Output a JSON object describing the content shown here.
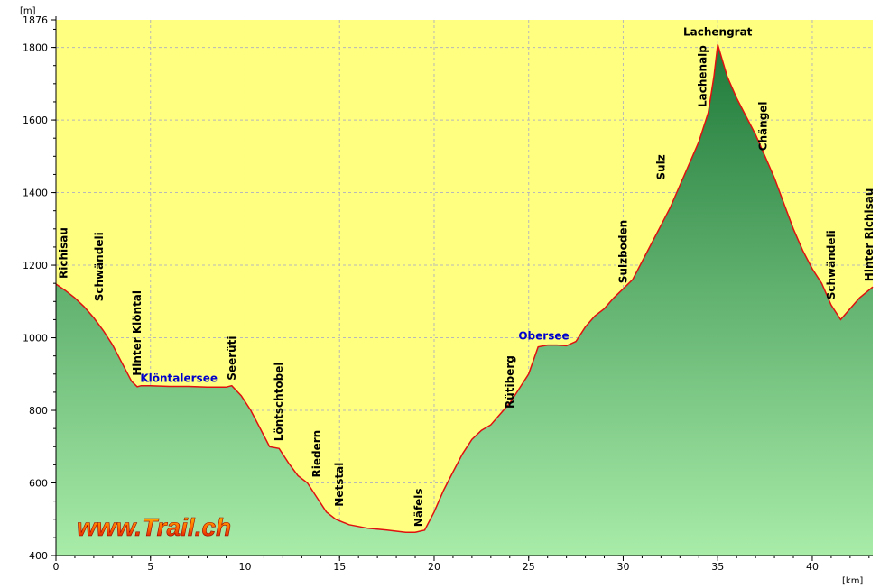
{
  "chart_data": {
    "type": "area",
    "title": "",
    "xlabel": "[km]",
    "ylabel": "[m]",
    "xlim": [
      0,
      43.2
    ],
    "ylim": [
      400,
      1876
    ],
    "x_ticks": [
      0,
      5,
      10,
      15,
      20,
      25,
      30,
      35,
      40
    ],
    "y_ticks": [
      400,
      600,
      800,
      1000,
      1200,
      1400,
      1600,
      1800,
      1876
    ],
    "grid": true,
    "colors": {
      "background": "#ffff80",
      "fill_top": "#1f7a3a",
      "fill_bottom": "#a8eca8",
      "line": "#e01010"
    },
    "series": [
      {
        "x": [
          0,
          0.5,
          1,
          1.5,
          2,
          2.5,
          3,
          3.5,
          4,
          4.3,
          4.5,
          5,
          6,
          7,
          8,
          9,
          9.3,
          9.8,
          10.3,
          10.8,
          11.3,
          11.8,
          12.3,
          12.8,
          13.3,
          13.8,
          14.3,
          14.8,
          15.5,
          16.5,
          17.5,
          18.5,
          19,
          19.5,
          20,
          20.5,
          21,
          21.5,
          22,
          22.5,
          23,
          23.5,
          24,
          24.5,
          25,
          25.5,
          26,
          26.5,
          27,
          27.5,
          28,
          28.5,
          29,
          29.5,
          30,
          30.5,
          31,
          31.5,
          32,
          32.5,
          33,
          33.5,
          34,
          34.5,
          34.8,
          35,
          35.5,
          36,
          36.5,
          37,
          37.5,
          38,
          38.5,
          39,
          39.5,
          40,
          40.5,
          41,
          41.5,
          42,
          42.5,
          43.2
        ],
        "y": [
          1148,
          1130,
          1110,
          1085,
          1055,
          1020,
          980,
          930,
          880,
          865,
          868,
          868,
          866,
          866,
          864,
          864,
          868,
          840,
          800,
          750,
          700,
          695,
          655,
          620,
          600,
          560,
          520,
          500,
          485,
          475,
          470,
          464,
          464,
          470,
          520,
          580,
          630,
          680,
          720,
          745,
          760,
          790,
          820,
          860,
          900,
          975,
          980,
          980,
          978,
          990,
          1030,
          1060,
          1080,
          1110,
          1135,
          1160,
          1210,
          1260,
          1310,
          1360,
          1420,
          1480,
          1540,
          1620,
          1720,
          1808,
          1720,
          1660,
          1610,
          1560,
          1500,
          1440,
          1370,
          1300,
          1240,
          1190,
          1150,
          1090,
          1050,
          1080,
          1110,
          1140
        ]
      }
    ],
    "annotations": [
      {
        "text": "Richisau",
        "x": 0.4,
        "y": 1148
      },
      {
        "text": "Schwändeli",
        "x": 2.3,
        "y": 1085
      },
      {
        "text": "Hinter Klöntal",
        "x": 4.3,
        "y": 880
      },
      {
        "text": "Seerüti",
        "x": 9.3,
        "y": 868
      },
      {
        "text": "Löntschtobel",
        "x": 11.8,
        "y": 700
      },
      {
        "text": "Riedern",
        "x": 13.8,
        "y": 600
      },
      {
        "text": "Netstal",
        "x": 15.0,
        "y": 520
      },
      {
        "text": "Näfels",
        "x": 19.2,
        "y": 464
      },
      {
        "text": "Rütiberg",
        "x": 24.0,
        "y": 790
      },
      {
        "text": "Sulzboden",
        "x": 30.0,
        "y": 1135
      },
      {
        "text": "Sulz",
        "x": 32.0,
        "y": 1420
      },
      {
        "text": "Lachenalp",
        "x": 34.2,
        "y": 1620
      },
      {
        "text": "Chängel",
        "x": 37.4,
        "y": 1500
      },
      {
        "text": "Schwändeli",
        "x": 41.0,
        "y": 1090
      },
      {
        "text": "Hinter Richisau",
        "x": 43.0,
        "y": 1140
      }
    ],
    "lake_annotations": [
      {
        "text": "Klöntalersee",
        "x": 6.5,
        "y": 864
      },
      {
        "text": "Obersee",
        "x": 25.8,
        "y": 980
      }
    ],
    "peak_annotation": {
      "text": "Lachengrat",
      "x": 35.0,
      "y": 1808
    }
  },
  "branding": {
    "text": "www.Trail.ch"
  }
}
